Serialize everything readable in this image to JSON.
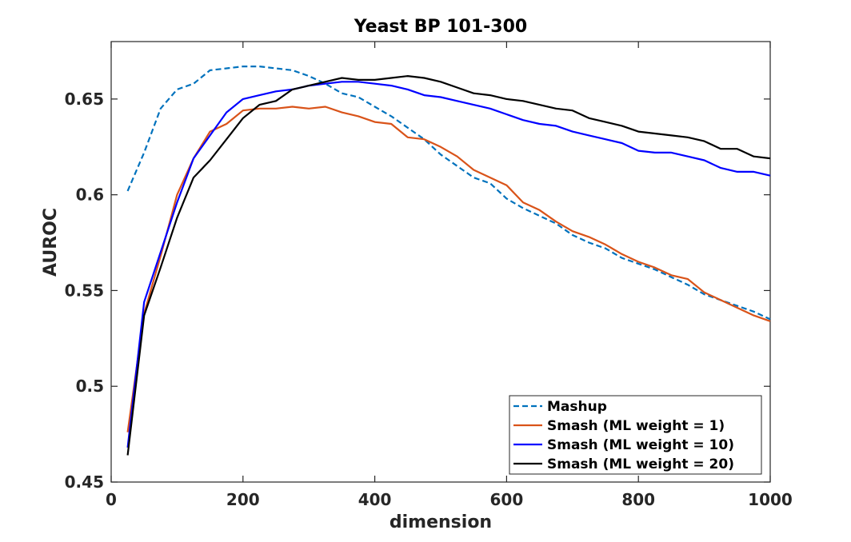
{
  "chart_data": {
    "type": "line",
    "title": "Yeast BP 101-300",
    "xlabel": "dimension",
    "ylabel": "AUROC",
    "xlim": [
      0,
      1000
    ],
    "ylim": [
      0.45,
      0.68
    ],
    "xticks": [
      0,
      200,
      400,
      600,
      800,
      1000
    ],
    "xtick_labels": [
      "0",
      "200",
      "400",
      "600",
      "800",
      "1000"
    ],
    "yticks": [
      0.45,
      0.5,
      0.55,
      0.6,
      0.65
    ],
    "ytick_labels": [
      "0.45",
      "0.5",
      "0.55",
      "0.6",
      "0.65"
    ],
    "grid": false,
    "legend_position": "bottom-right",
    "x": [
      25,
      50,
      75,
      100,
      125,
      150,
      175,
      200,
      225,
      250,
      275,
      300,
      325,
      350,
      375,
      400,
      425,
      450,
      475,
      500,
      525,
      550,
      575,
      600,
      625,
      650,
      675,
      700,
      725,
      750,
      775,
      800,
      825,
      850,
      875,
      900,
      925,
      950,
      975,
      1000
    ],
    "series": [
      {
        "name": "Mashup",
        "color": "#0072BD",
        "dash": "dashed",
        "values": [
          0.602,
          0.622,
          0.645,
          0.655,
          0.658,
          0.665,
          0.666,
          0.667,
          0.667,
          0.666,
          0.665,
          0.662,
          0.658,
          0.653,
          0.651,
          0.646,
          0.641,
          0.635,
          0.629,
          0.621,
          0.615,
          0.609,
          0.606,
          0.598,
          0.593,
          0.589,
          0.585,
          0.579,
          0.575,
          0.572,
          0.567,
          0.564,
          0.561,
          0.557,
          0.553,
          0.548,
          0.545,
          0.542,
          0.539,
          0.535
        ]
      },
      {
        "name": "Smash (ML weight = 1)",
        "color": "#D95319",
        "dash": "solid",
        "values": [
          0.476,
          0.538,
          0.568,
          0.6,
          0.619,
          0.633,
          0.637,
          0.644,
          0.645,
          0.645,
          0.646,
          0.645,
          0.646,
          0.643,
          0.641,
          0.638,
          0.637,
          0.63,
          0.629,
          0.625,
          0.62,
          0.613,
          0.609,
          0.605,
          0.596,
          0.592,
          0.586,
          0.581,
          0.578,
          0.574,
          0.569,
          0.565,
          0.562,
          0.558,
          0.556,
          0.549,
          0.545,
          0.541,
          0.537,
          0.534
        ]
      },
      {
        "name": "Smash (ML weight = 10)",
        "color": "#0000FF",
        "dash": "solid",
        "values": [
          0.468,
          0.544,
          0.57,
          0.596,
          0.619,
          0.631,
          0.643,
          0.65,
          0.652,
          0.654,
          0.655,
          0.657,
          0.658,
          0.659,
          0.659,
          0.658,
          0.657,
          0.655,
          0.652,
          0.651,
          0.649,
          0.647,
          0.645,
          0.642,
          0.639,
          0.637,
          0.636,
          0.633,
          0.631,
          0.629,
          0.627,
          0.623,
          0.622,
          0.622,
          0.62,
          0.618,
          0.614,
          0.612,
          0.612,
          0.61
        ]
      },
      {
        "name": "Smash (ML weight = 20)",
        "color": "#000000",
        "dash": "solid",
        "values": [
          0.464,
          0.537,
          0.562,
          0.588,
          0.609,
          0.618,
          0.629,
          0.64,
          0.647,
          0.649,
          0.655,
          0.657,
          0.659,
          0.661,
          0.66,
          0.66,
          0.661,
          0.662,
          0.661,
          0.659,
          0.656,
          0.653,
          0.652,
          0.65,
          0.649,
          0.647,
          0.645,
          0.644,
          0.64,
          0.638,
          0.636,
          0.633,
          0.632,
          0.631,
          0.63,
          0.628,
          0.624,
          0.624,
          0.62,
          0.619
        ]
      }
    ]
  }
}
